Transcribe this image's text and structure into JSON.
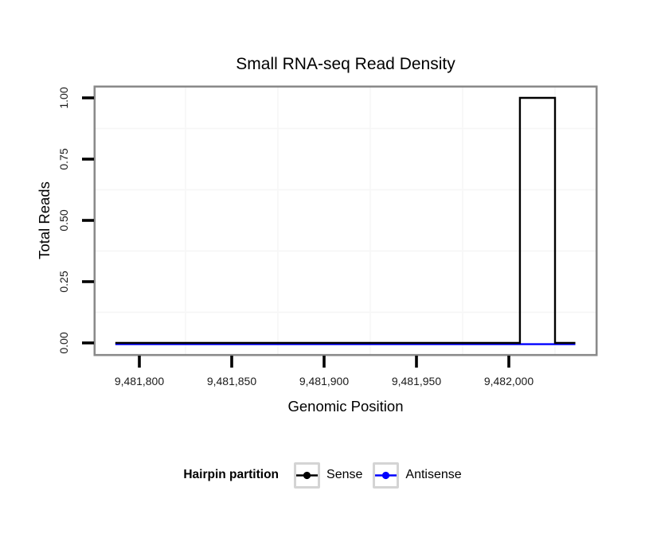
{
  "chart_data": {
    "type": "line",
    "subtype": "step",
    "title": "Small RNA-seq Read Density",
    "xlabel": "Genomic Position",
    "ylabel": "Total Reads",
    "x_range": [
      9481787,
      9482036
    ],
    "ylim": [
      0,
      1
    ],
    "grid": "minor-only",
    "x_ticks": [
      {
        "value": 9481800,
        "label": "9,481,800"
      },
      {
        "value": 9481850,
        "label": "9,481,850"
      },
      {
        "value": 9481900,
        "label": "9,481,900"
      },
      {
        "value": 9481950,
        "label": "9,481,950"
      },
      {
        "value": 9482000,
        "label": "9,482,000"
      }
    ],
    "y_ticks": [
      {
        "value": 0,
        "label": "0.00"
      },
      {
        "value": 0.25,
        "label": "0.25"
      },
      {
        "value": 0.5,
        "label": "0.50"
      },
      {
        "value": 0.75,
        "label": "0.75"
      },
      {
        "value": 1,
        "label": "1.00"
      }
    ],
    "series": [
      {
        "name": "Sense",
        "color": "#000000",
        "points": [
          [
            9481787,
            0
          ],
          [
            9482006,
            0
          ],
          [
            9482006,
            1
          ],
          [
            9482025,
            1
          ],
          [
            9482025,
            0
          ],
          [
            9482036,
            0
          ]
        ]
      },
      {
        "name": "Antisense",
        "color": "#0000ff",
        "points": [
          [
            9481787,
            0
          ],
          [
            9482036,
            0
          ]
        ]
      }
    ],
    "legend": {
      "title": "Hairpin partition",
      "position": "bottom",
      "entries": [
        {
          "label": "Sense",
          "color": "#000000"
        },
        {
          "label": "Antisense",
          "color": "#0000ff"
        }
      ]
    },
    "style": {
      "panel_background": "#ffffff",
      "panel_border": "#8a8a8a",
      "grid": "#f6f6f6",
      "tick": "#000000"
    }
  }
}
